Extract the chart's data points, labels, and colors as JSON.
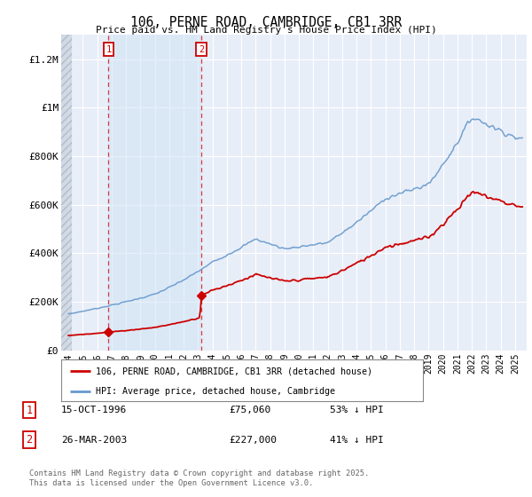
{
  "title": "106, PERNE ROAD, CAMBRIDGE, CB1 3RR",
  "subtitle": "Price paid vs. HM Land Registry's House Price Index (HPI)",
  "background_color": "#ffffff",
  "plot_bg_color": "#e8eef8",
  "grid_color": "#ffffff",
  "ylim": [
    0,
    1300000
  ],
  "xlim_start": 1993.5,
  "xlim_end": 2025.8,
  "yticks": [
    0,
    200000,
    400000,
    600000,
    800000,
    1000000,
    1200000
  ],
  "ytick_labels": [
    "£0",
    "£200K",
    "£400K",
    "£600K",
    "£800K",
    "£1M",
    "£1.2M"
  ],
  "xticks": [
    1994,
    1995,
    1996,
    1997,
    1998,
    1999,
    2000,
    2001,
    2002,
    2003,
    2004,
    2005,
    2006,
    2007,
    2008,
    2009,
    2010,
    2011,
    2012,
    2013,
    2014,
    2015,
    2016,
    2017,
    2018,
    2019,
    2020,
    2021,
    2022,
    2023,
    2024,
    2025
  ],
  "sale1_year": 1996.79,
  "sale1_price": 75060,
  "sale1_label": "1",
  "sale1_date": "15-OCT-1996",
  "sale1_price_str": "£75,060",
  "sale1_hpi_str": "53% ↓ HPI",
  "sale2_year": 2003.23,
  "sale2_price": 227000,
  "sale2_label": "2",
  "sale2_date": "26-MAR-2003",
  "sale2_price_str": "£227,000",
  "sale2_hpi_str": "41% ↓ HPI",
  "legend_line1": "106, PERNE ROAD, CAMBRIDGE, CB1 3RR (detached house)",
  "legend_line2": "HPI: Average price, detached house, Cambridge",
  "footer": "Contains HM Land Registry data © Crown copyright and database right 2025.\nThis data is licensed under the Open Government Licence v3.0.",
  "red_color": "#cc0000",
  "blue_color": "#6699cc",
  "shade_color": "#dce8f5",
  "hatch_end_year": 1994.0
}
